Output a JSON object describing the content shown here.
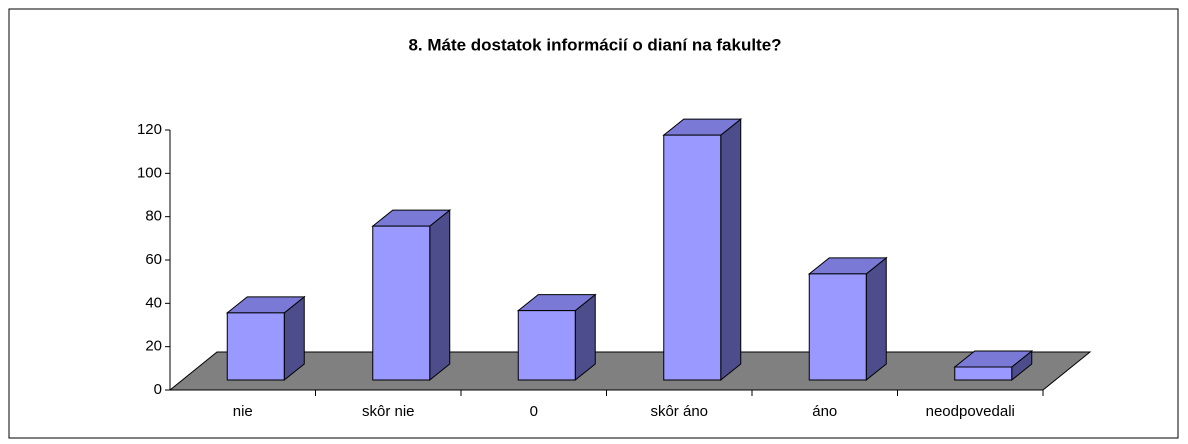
{
  "chart_data": {
    "type": "bar3d",
    "title": "8. Máte dostatok informácií o dianí na fakulte?",
    "categories": [
      "nie",
      "skôr nie",
      "0",
      "skôr áno",
      "áno",
      "neodpovedali"
    ],
    "values": [
      31,
      71,
      32,
      113,
      49,
      6
    ],
    "color": "#9999ff",
    "ylim": [
      0,
      120
    ],
    "yticks": [
      0,
      20,
      40,
      60,
      80,
      100,
      120
    ]
  }
}
